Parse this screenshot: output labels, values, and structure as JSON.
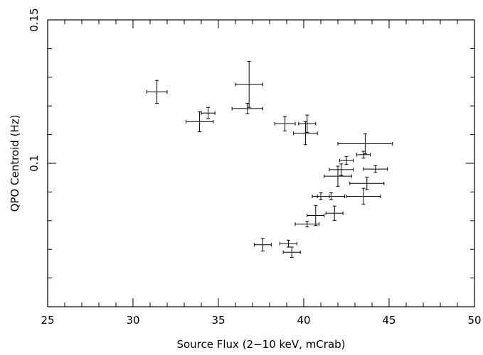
{
  "chart_data": {
    "type": "scatter",
    "title": "",
    "xlabel": "Source Flux (2−10 keV, mCrab)",
    "ylabel": "QPO Centroid (Hz)",
    "xlim": [
      25,
      50
    ],
    "ylim": [
      0.05,
      0.15
    ],
    "x_ticks": [
      25,
      30,
      35,
      40,
      45,
      50
    ],
    "x_tick_labels": [
      "25",
      "30",
      "35",
      "40",
      "45",
      "50"
    ],
    "y_ticks": [
      0.1,
      0.15
    ],
    "y_tick_labels": [
      "0.1",
      "0.15"
    ],
    "grid": false,
    "series": [
      {
        "points": [
          {
            "x": 31.4,
            "xerr": 0.6,
            "y": 0.1249,
            "yerr": 0.004
          },
          {
            "x": 34.4,
            "xerr": 0.4,
            "y": 0.1175,
            "yerr": 0.002
          },
          {
            "x": 33.9,
            "xerr": 0.8,
            "y": 0.1145,
            "yerr": 0.0035
          },
          {
            "x": 36.8,
            "xerr": 0.8,
            "y": 0.1275,
            "yerr": 0.008
          },
          {
            "x": 36.7,
            "xerr": 0.9,
            "y": 0.1191,
            "yerr": 0.0018
          },
          {
            "x": 38.9,
            "xerr": 0.6,
            "y": 0.1138,
            "yerr": 0.0025
          },
          {
            "x": 40.2,
            "xerr": 0.5,
            "y": 0.1138,
            "yerr": 0.003
          },
          {
            "x": 40.1,
            "xerr": 0.7,
            "y": 0.1105,
            "yerr": 0.004
          },
          {
            "x": 43.6,
            "xerr": 1.6,
            "y": 0.1068,
            "yerr": 0.0035
          },
          {
            "x": 43.5,
            "xerr": 0.4,
            "y": 0.103,
            "yerr": 0.0012
          },
          {
            "x": 42.5,
            "xerr": 0.4,
            "y": 0.101,
            "yerr": 0.0014
          },
          {
            "x": 42.2,
            "xerr": 0.7,
            "y": 0.0978,
            "yerr": 0.002
          },
          {
            "x": 44.2,
            "xerr": 0.7,
            "y": 0.098,
            "yerr": 0.0012
          },
          {
            "x": 42.0,
            "xerr": 0.8,
            "y": 0.0955,
            "yerr": 0.0035
          },
          {
            "x": 43.7,
            "xerr": 1.0,
            "y": 0.093,
            "yerr": 0.0022
          },
          {
            "x": 41.0,
            "xerr": 0.5,
            "y": 0.0885,
            "yerr": 0.0012
          },
          {
            "x": 41.6,
            "xerr": 0.8,
            "y": 0.0885,
            "yerr": 0.0012
          },
          {
            "x": 43.5,
            "xerr": 1.0,
            "y": 0.0885,
            "yerr": 0.0028
          },
          {
            "x": 41.8,
            "xerr": 0.5,
            "y": 0.0826,
            "yerr": 0.0025
          },
          {
            "x": 40.7,
            "xerr": 0.5,
            "y": 0.0818,
            "yerr": 0.0035
          },
          {
            "x": 40.2,
            "xerr": 0.7,
            "y": 0.0788,
            "yerr": 0.001
          },
          {
            "x": 37.6,
            "xerr": 0.5,
            "y": 0.0716,
            "yerr": 0.0022
          },
          {
            "x": 39.1,
            "xerr": 0.5,
            "y": 0.072,
            "yerr": 0.0012
          },
          {
            "x": 39.3,
            "xerr": 0.5,
            "y": 0.069,
            "yerr": 0.0018
          }
        ]
      }
    ]
  }
}
